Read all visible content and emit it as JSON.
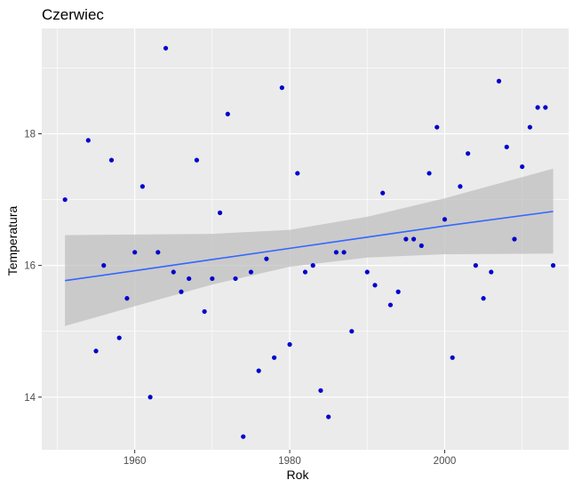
{
  "chart_data": {
    "type": "scatter",
    "title": "Czerwiec",
    "xlabel": "Rok",
    "ylabel": "Temperatura",
    "xlim": [
      1948,
      2016
    ],
    "ylim": [
      13.2,
      19.6
    ],
    "x_ticks": [
      1960,
      1980,
      2000
    ],
    "y_ticks": [
      14,
      16,
      18
    ],
    "grid": true,
    "point_color": "#0000CD",
    "trend_color": "#3366FF",
    "band_color": "#BFBFBF",
    "panel_color": "#EBEBEB",
    "points": [
      {
        "x": 1951,
        "y": 17.0
      },
      {
        "x": 1954,
        "y": 17.9
      },
      {
        "x": 1955,
        "y": 14.7
      },
      {
        "x": 1956,
        "y": 16.0
      },
      {
        "x": 1957,
        "y": 17.6
      },
      {
        "x": 1958,
        "y": 14.9
      },
      {
        "x": 1959,
        "y": 15.5
      },
      {
        "x": 1960,
        "y": 16.2
      },
      {
        "x": 1961,
        "y": 17.2
      },
      {
        "x": 1962,
        "y": 14.0
      },
      {
        "x": 1963,
        "y": 16.2
      },
      {
        "x": 1964,
        "y": 19.3
      },
      {
        "x": 1965,
        "y": 15.9
      },
      {
        "x": 1966,
        "y": 15.6
      },
      {
        "x": 1967,
        "y": 15.8
      },
      {
        "x": 1968,
        "y": 17.6
      },
      {
        "x": 1969,
        "y": 15.3
      },
      {
        "x": 1970,
        "y": 15.8
      },
      {
        "x": 1971,
        "y": 16.8
      },
      {
        "x": 1972,
        "y": 18.3
      },
      {
        "x": 1973,
        "y": 15.8
      },
      {
        "x": 1974,
        "y": 13.4
      },
      {
        "x": 1975,
        "y": 15.9
      },
      {
        "x": 1976,
        "y": 14.4
      },
      {
        "x": 1977,
        "y": 16.1
      },
      {
        "x": 1978,
        "y": 14.6
      },
      {
        "x": 1979,
        "y": 18.7
      },
      {
        "x": 1980,
        "y": 14.8
      },
      {
        "x": 1981,
        "y": 17.4
      },
      {
        "x": 1982,
        "y": 15.9
      },
      {
        "x": 1983,
        "y": 16.0
      },
      {
        "x": 1984,
        "y": 14.1
      },
      {
        "x": 1985,
        "y": 13.7
      },
      {
        "x": 1986,
        "y": 16.2
      },
      {
        "x": 1987,
        "y": 16.2
      },
      {
        "x": 1988,
        "y": 15.0
      },
      {
        "x": 1990,
        "y": 15.9
      },
      {
        "x": 1991,
        "y": 15.7
      },
      {
        "x": 1992,
        "y": 17.1
      },
      {
        "x": 1993,
        "y": 15.4
      },
      {
        "x": 1994,
        "y": 15.6
      },
      {
        "x": 1995,
        "y": 16.4
      },
      {
        "x": 1996,
        "y": 16.4
      },
      {
        "x": 1997,
        "y": 16.3
      },
      {
        "x": 1998,
        "y": 17.4
      },
      {
        "x": 1999,
        "y": 18.1
      },
      {
        "x": 2000,
        "y": 16.7
      },
      {
        "x": 2001,
        "y": 14.6
      },
      {
        "x": 2002,
        "y": 17.2
      },
      {
        "x": 2003,
        "y": 17.7
      },
      {
        "x": 2004,
        "y": 16.0
      },
      {
        "x": 2005,
        "y": 15.5
      },
      {
        "x": 2006,
        "y": 15.9
      },
      {
        "x": 2007,
        "y": 18.8
      },
      {
        "x": 2008,
        "y": 17.8
      },
      {
        "x": 2009,
        "y": 16.4
      },
      {
        "x": 2010,
        "y": 17.5
      },
      {
        "x": 2011,
        "y": 18.1
      },
      {
        "x": 2012,
        "y": 18.4
      },
      {
        "x": 2013,
        "y": 18.4
      },
      {
        "x": 2014,
        "y": 16.0
      }
    ],
    "trend": [
      {
        "x": 1951,
        "y": 15.77,
        "lower": 15.08,
        "upper": 16.46
      },
      {
        "x": 1960,
        "y": 15.92,
        "lower": 15.38,
        "upper": 16.47
      },
      {
        "x": 1970,
        "y": 16.09,
        "lower": 15.71,
        "upper": 16.48
      },
      {
        "x": 1980,
        "y": 16.26,
        "lower": 15.98,
        "upper": 16.54
      },
      {
        "x": 1990,
        "y": 16.43,
        "lower": 16.12,
        "upper": 16.74
      },
      {
        "x": 2000,
        "y": 16.6,
        "lower": 16.17,
        "upper": 17.02
      },
      {
        "x": 2014,
        "y": 16.82,
        "lower": 16.18,
        "upper": 17.47
      }
    ]
  }
}
